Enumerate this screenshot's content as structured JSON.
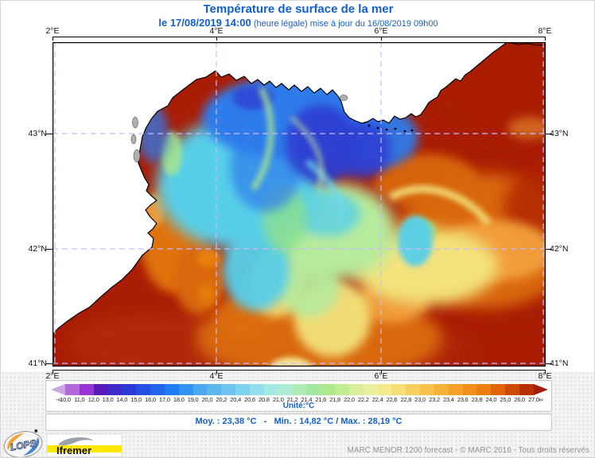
{
  "title": "Température de surface de la mer",
  "subtitle": {
    "date_bold": "le 17/08/2019 14:00",
    "rest": " (heure légale) mise à jour du 16/08/2019 09h00"
  },
  "map": {
    "lon_labels": [
      "2°E",
      "4°E",
      "6°E",
      "8°E"
    ],
    "lat_labels": [
      "43°N",
      "42°N",
      "41°N"
    ]
  },
  "colorbar": {
    "unit_label": "Unité:°C",
    "tick_labels": [
      "-∞",
      "10,0",
      "11,0",
      "12,0",
      "13,0",
      "14,0",
      "15,0",
      "16,0",
      "17,0",
      "18,0",
      "19,0",
      "20,0",
      "20,2",
      "20,4",
      "20,6",
      "20,8",
      "21,0",
      "21,2",
      "21,4",
      "21,6",
      "21,8",
      "22,0",
      "22,2",
      "22,4",
      "22,6",
      "22,8",
      "23,0",
      "23,2",
      "23,4",
      "23,6",
      "23,8",
      "24,0",
      "25,0",
      "26,0",
      "27,0",
      "∞"
    ],
    "segment_colors": [
      "#b36ad9",
      "#9934d6",
      "#5a1cb8",
      "#3f2cc9",
      "#2b3ad5",
      "#2450e3",
      "#2266ec",
      "#1f7cf3",
      "#2f93f2",
      "#4aa8f0",
      "#5cb6ee",
      "#6ec4ee",
      "#80d1ed",
      "#92deec",
      "#a2e8e4",
      "#aeecd2",
      "#aeecb8",
      "#a2e89e",
      "#aee88d",
      "#c2ec93",
      "#d8ee9a",
      "#ebf09e",
      "#f3ea8c",
      "#f5de74",
      "#f6d05f",
      "#f7c14b",
      "#f6b13a",
      "#f4a02b",
      "#f18f1d",
      "#ec7d10",
      "#df6507",
      "#cd4904",
      "#b83104"
    ],
    "left_arrow_color": "#c9a6dd",
    "right_arrow_color": "#a01e05"
  },
  "stats": {
    "text": "Moy. : 23,38 °C   -   Min. : 14,82 °C / Max. : 28,19 °C"
  },
  "footer": {
    "lops_label": "LOPS",
    "ifremer_label": "Ifremer",
    "copyright": "MARC MENOR 1200 forecast - © MARC 2016 - Tous droits réservés"
  },
  "colors": {
    "accent_blue": "#1160cd",
    "land": "#ffffff",
    "grid_dash": "#c9bdf5"
  }
}
